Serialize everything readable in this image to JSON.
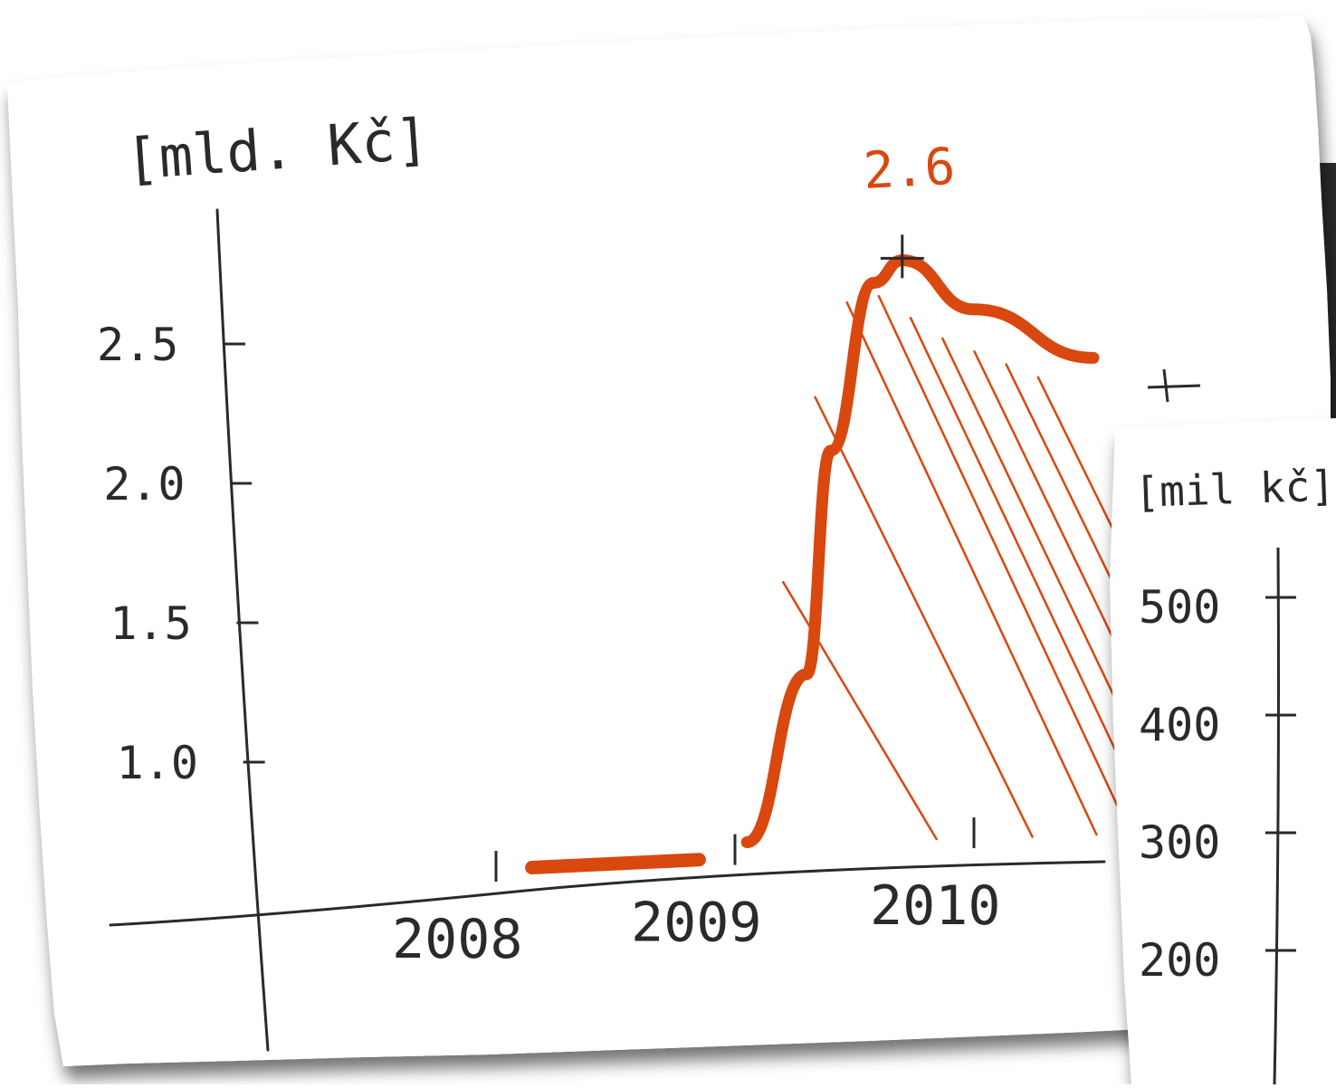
{
  "colors": {
    "ink": "#2a2a2a",
    "accent": "#d9480f",
    "paper": "#ffffff",
    "shadow": "#1a1a1a"
  },
  "chart_data": [
    {
      "type": "line",
      "title": "",
      "ylabel": "[mld. Kč]",
      "xlabel": "",
      "x_tick_labels": [
        "2008",
        "2009",
        "2010"
      ],
      "y_tick_labels": [
        "1.0",
        "1.5",
        "2.0",
        "2.5"
      ],
      "ylim": [
        0.6,
        2.9
      ],
      "annotations": [
        "2.6"
      ],
      "series": [
        {
          "x": [
            2008.15,
            2008.85,
            2009.05,
            2009.3,
            2009.4,
            2009.58,
            2009.7,
            2010.0,
            2010.5
          ],
          "y": [
            0.62,
            0.64,
            0.7,
            1.3,
            2.1,
            2.7,
            2.78,
            2.6,
            2.42
          ]
        }
      ],
      "shaded_region": {
        "x_from": 2009.3,
        "x_to": 2010.5
      },
      "grid": false,
      "legend": "none"
    },
    {
      "type": "line",
      "title": "",
      "ylabel": "[mil kč]",
      "xlabel": "",
      "y_tick_labels": [
        "500",
        "400",
        "300",
        "200"
      ]
    }
  ]
}
